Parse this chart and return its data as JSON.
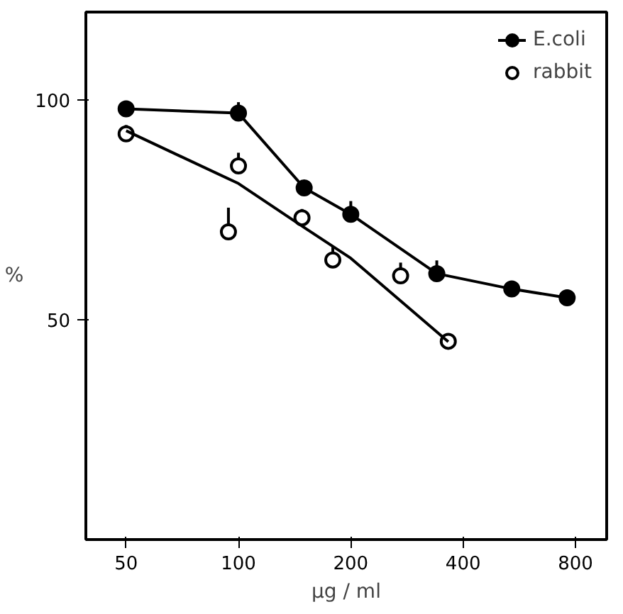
{
  "chart_data": {
    "type": "line",
    "ylabel": "%",
    "xlabel": "µg / ml",
    "log": "x",
    "xlim": [
      39,
      970
    ],
    "xticks": [
      50,
      100,
      200,
      400,
      800
    ],
    "ylim": [
      0,
      120
    ],
    "yticks": [
      50,
      100
    ],
    "grid": false,
    "legend": "top right",
    "marker": "circle",
    "series": [
      {
        "name": "E.coli",
        "color": "#000000",
        "x": [
          50,
          100,
          150,
          200,
          340,
          540,
          760
        ],
        "values": [
          98,
          97,
          80,
          74,
          60.5,
          57,
          55
        ],
        "errors": [
          [
            98,
            99
          ],
          [
            97,
            99.5
          ],
          [
            80,
            81
          ],
          [
            74,
            77
          ],
          [
            60.5,
            63.5
          ],
          [
            57,
            58
          ],
          [
            55,
            56
          ]
        ]
      },
      {
        "name": "rabbit",
        "color": "#000000",
        "type": "scatter",
        "x": [
          50,
          100,
          94,
          148,
          179,
          272,
          365
        ],
        "values": [
          92.3,
          85,
          70,
          73.2,
          63.6,
          60,
          45.1
        ],
        "errors": [
          [
            92.3,
            94.3
          ],
          [
            85,
            88
          ],
          [
            70,
            75.5
          ],
          [
            73.2,
            75.2
          ],
          [
            63.6,
            66.6
          ],
          [
            60,
            63
          ],
          [
            45.1,
            46.6
          ]
        ]
      },
      {
        "color": "#000000",
        "type": "line",
        "marker": "none",
        "x": [
          50,
          100,
          150,
          200,
          365
        ],
        "values": [
          93,
          81,
          71,
          64,
          45
        ]
      }
    ]
  }
}
